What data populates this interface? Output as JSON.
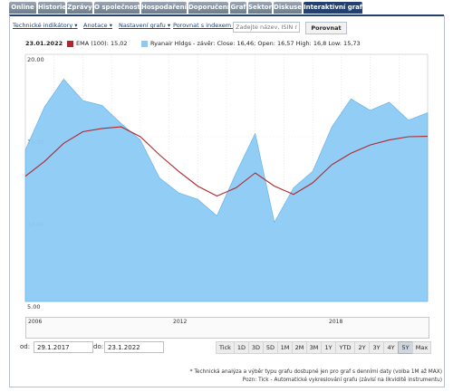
{
  "tabs": [
    "Online",
    "Historie",
    "Zprávy",
    "O společnosti",
    "Hospodaření",
    "Doporučení",
    "Graf",
    "Sektor",
    "Diskuse",
    "Interaktivní graf"
  ],
  "active_tab": "Interaktivní graf",
  "toolbar": {
    "indicators": "Technické indikátory",
    "annotations": "Anotace",
    "settings": "Nastavení grafu",
    "compare_index": "Porovnat s indexem",
    "search_placeholder": "Zadejte název, ISIN nebo",
    "compare_button": "Porovnat"
  },
  "legend": {
    "date": "23.01.2022",
    "ema_label": "EMA (100): 15,02",
    "stock_label": "Ryanair Hldgs - závěr: Close: 16,46; Open: 16,57 High: 16,8 Low: 15,73",
    "ema_color": "#b0272c",
    "area_color": "#8ccaf5"
  },
  "navigator_labels": [
    "2006",
    "2012",
    "2018"
  ],
  "range": {
    "from_label": "od:",
    "from_value": "29.1.2017",
    "to_label": "do:",
    "to_value": "23.1.2022"
  },
  "period_buttons": [
    "Tick",
    "1D",
    "3D",
    "5D",
    "1M",
    "2M",
    "3M",
    "1Y",
    "YTD",
    "2Y",
    "3Y",
    "4Y",
    "5Y",
    "Max"
  ],
  "selected_period": "5Y",
  "notes": [
    "* Technická analýza a výběr typu grafu dostupné jen pro graf s denními daty (volba 1M až MAX)",
    "Pozn: Tick - Automatické vykreslování grafu (závisí na likviditě instrumentu)"
  ],
  "chart_data": {
    "type": "area",
    "title": "",
    "xlabel": "",
    "ylabel": "",
    "ylim": [
      5,
      20
    ],
    "y_ticks": [
      "20.00",
      "15.00",
      "10.00",
      "5.00"
    ],
    "y_tick_values": [
      20,
      15,
      10,
      5
    ],
    "x_range": [
      "2017-01-29",
      "2022-01-23"
    ],
    "grid": "vertical dotted lines",
    "series": [
      {
        "name": "Ryanair Hldgs - závěr",
        "type": "area",
        "x": [
          "2017-01",
          "2017-04",
          "2017-07",
          "2017-10",
          "2018-01",
          "2018-04",
          "2018-07",
          "2018-10",
          "2019-01",
          "2019-04",
          "2019-07",
          "2019-10",
          "2020-01",
          "2020-03",
          "2020-06",
          "2020-09",
          "2020-12",
          "2021-03",
          "2021-06",
          "2021-09",
          "2021-12",
          "2022-01"
        ],
        "values": [
          14.2,
          16.8,
          18.5,
          17.2,
          16.9,
          15.8,
          14.8,
          12.5,
          11.6,
          11.2,
          10.2,
          12.8,
          15.2,
          9.8,
          11.9,
          12.9,
          15.6,
          17.3,
          16.6,
          17.1,
          16.0,
          16.46
        ]
      },
      {
        "name": "EMA (100)",
        "type": "line",
        "x": [
          "2017-01",
          "2017-04",
          "2017-07",
          "2017-10",
          "2018-01",
          "2018-04",
          "2018-07",
          "2018-10",
          "2019-01",
          "2019-04",
          "2019-07",
          "2019-10",
          "2020-01",
          "2020-03",
          "2020-06",
          "2020-09",
          "2020-12",
          "2021-03",
          "2021-06",
          "2021-09",
          "2021-12",
          "2022-01"
        ],
        "values": [
          12.6,
          13.5,
          14.6,
          15.3,
          15.5,
          15.6,
          15.0,
          13.9,
          12.9,
          12.0,
          11.4,
          11.9,
          12.8,
          12.0,
          11.5,
          12.2,
          13.3,
          14.0,
          14.5,
          14.8,
          15.0,
          15.02
        ]
      }
    ]
  }
}
